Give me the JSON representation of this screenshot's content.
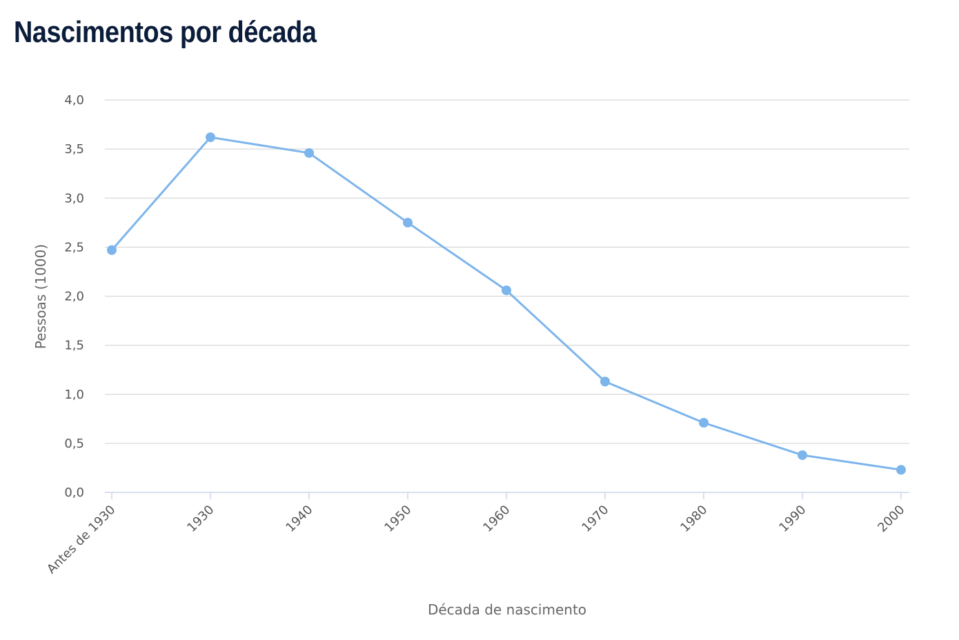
{
  "title": "Nascimentos por década",
  "chart_data": {
    "type": "line",
    "title": "Nascimentos por década",
    "xlabel": "Década de nascimento",
    "ylabel": "Pessoas (1000)",
    "categories": [
      "Antes de 1930",
      "1930",
      "1940",
      "1950",
      "1960",
      "1970",
      "1980",
      "1990",
      "2000"
    ],
    "values": [
      2.47,
      3.62,
      3.46,
      2.75,
      2.06,
      1.13,
      0.71,
      0.38,
      0.23
    ],
    "ylim": [
      0,
      4
    ],
    "yticks": [
      "0,0",
      "0,5",
      "1,0",
      "1,5",
      "2,0",
      "2,5",
      "3,0",
      "3,5",
      "4,0"
    ],
    "grid": true,
    "legend": "none",
    "colors": {
      "line": "#7cb5ec",
      "grid": "#d8d8d8",
      "axis": "#ccd6eb",
      "title": "#0b1d3a"
    }
  }
}
